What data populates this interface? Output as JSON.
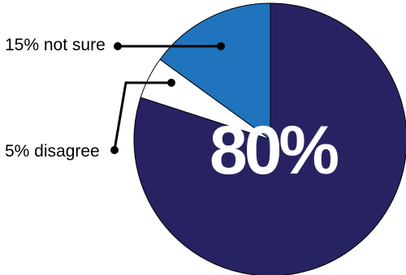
{
  "chart_data": {
    "type": "pie",
    "slices": [
      {
        "label": "80%",
        "value": 80,
        "color": "#272262"
      },
      {
        "label": "5% disagree",
        "value": 5,
        "color": "#ffffff"
      },
      {
        "label": "15% not sure",
        "value": 15,
        "color": "#1f74bd"
      }
    ],
    "title": "",
    "legend": "callouts-left"
  }
}
